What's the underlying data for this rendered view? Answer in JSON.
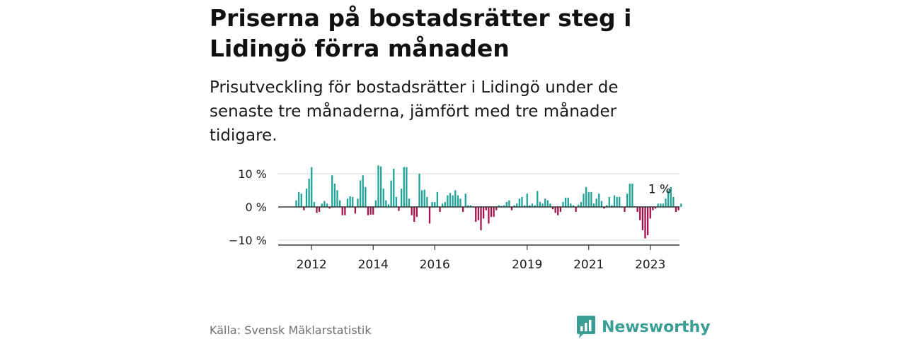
{
  "header": {
    "title": "Priserna på bostadsrätter steg i Lidingö förra månaden",
    "subtitle": "Prisutveckling för bostadsrätter i Lidingö under de senaste tre månaderna, jämfört med tre månader tidigare."
  },
  "footer": {
    "source": "Källa: Svensk Mäklarstatistik",
    "brand": "Newsworthy",
    "brand_icon": "newsworthy-logo-icon"
  },
  "colors": {
    "positive": "#1fa49a",
    "negative": "#a6134f",
    "axis": "#333333",
    "grid": "#d9d9d9",
    "brand": "#3a9e95"
  },
  "chart_data": {
    "type": "bar",
    "title": "",
    "xlabel": "",
    "ylabel": "",
    "ylim": [
      -11,
      12
    ],
    "grid": true,
    "y_ticks": [
      {
        "value": 10,
        "label": "10 %"
      },
      {
        "value": 0,
        "label": "0 %"
      },
      {
        "value": -10,
        "label": "−10 %"
      }
    ],
    "x_ticks": [
      {
        "index": 6,
        "label": "2012"
      },
      {
        "index": 30,
        "label": "2014"
      },
      {
        "index": 54,
        "label": "2016"
      },
      {
        "index": 90,
        "label": "2019"
      },
      {
        "index": 114,
        "label": "2021"
      },
      {
        "index": 138,
        "label": "2023"
      }
    ],
    "last_label": "1 %",
    "start": "2011-01",
    "values": [
      2.0,
      4.5,
      4.0,
      -1.0,
      5.5,
      8.5,
      12.0,
      1.5,
      -1.8,
      -1.5,
      1.0,
      1.8,
      1.0,
      -0.5,
      9.5,
      7.0,
      5.0,
      2.0,
      -2.5,
      -2.5,
      2.5,
      3.2,
      3.0,
      -2.0,
      2.5,
      8.0,
      9.5,
      6.0,
      -2.5,
      -2.3,
      -2.3,
      2.0,
      12.5,
      12.2,
      5.5,
      2.0,
      0.8,
      8.0,
      11.5,
      3.0,
      -1.2,
      5.5,
      12.0,
      12.0,
      2.5,
      -2.5,
      -4.5,
      -3.0,
      10.0,
      5.0,
      5.2,
      3.0,
      -5.0,
      1.5,
      1.5,
      4.5,
      -1.5,
      1.0,
      1.5,
      3.5,
      4.2,
      3.5,
      5.0,
      3.5,
      2.5,
      -1.5,
      4.0,
      0.5,
      0.5,
      0.2,
      -4.5,
      -4.0,
      -7.0,
      -3.5,
      -1.0,
      -5.0,
      -3.0,
      -3.0,
      -1.0,
      0.5,
      0.3,
      0.5,
      1.5,
      2.0,
      -1.0,
      0.5,
      1.0,
      2.5,
      3.0,
      0.5,
      4.0,
      0.5,
      1.0,
      0.5,
      4.8,
      1.5,
      1.0,
      2.5,
      2.0,
      1.0,
      -0.7,
      -1.8,
      -2.5,
      -1.5,
      1.5,
      2.8,
      2.8,
      1.0,
      0.5,
      -1.5,
      0.7,
      1.5,
      4.0,
      6.0,
      4.5,
      4.5,
      1.0,
      2.5,
      4.0,
      1.8,
      -0.5,
      0.5,
      3.0,
      0.5,
      3.5,
      3.0,
      3.0,
      0.2,
      -1.5,
      4.0,
      7.0,
      7.0,
      0.2,
      -1.5,
      -4.0,
      -7.0,
      -9.5,
      -8.5,
      -3.5,
      -1.0,
      -0.5,
      1.0,
      1.0,
      1.0,
      2.5,
      5.0,
      6.0,
      3.0,
      -1.5,
      -1.0,
      1.0
    ]
  }
}
